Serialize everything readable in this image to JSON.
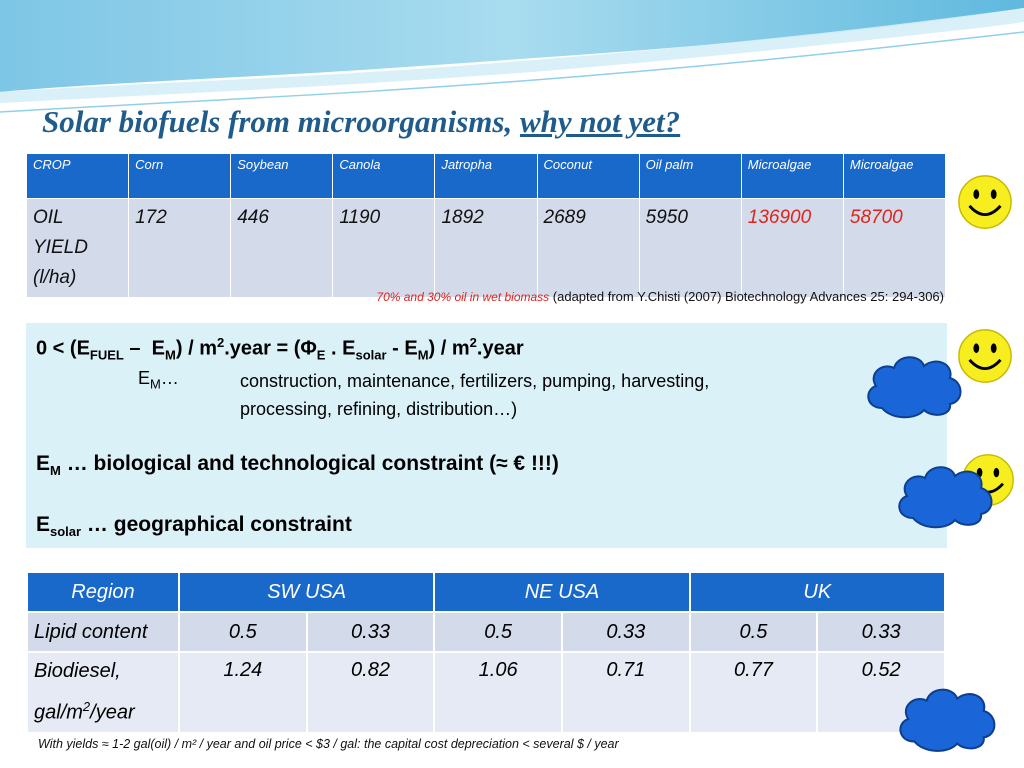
{
  "title": {
    "main": "Solar biofuels from microorganisms, ",
    "link": "why not yet?"
  },
  "table1": {
    "header": [
      "CROP",
      "Corn",
      "Soybean",
      "Canola",
      "Jatropha",
      "Coconut",
      "Oil palm",
      "Microalgae",
      "Microalgae"
    ],
    "row_label": [
      "OIL",
      "YIELD",
      "(l/ha)"
    ],
    "values": [
      "172",
      "446",
      "1190",
      "1892",
      "2689",
      "5950",
      "136900",
      "58700"
    ],
    "highlight_color": "#e0241b"
  },
  "source": {
    "note": "70% and 30% oil in wet biomass",
    "citation": " (adapted from Y.Chisti (2007) Biotechnology Advances 25: 294-306)"
  },
  "box": {
    "em_desc_line1": "construction, maintenance, fertilizers, pumping, harvesting,",
    "em_desc_line2": "processing, refining, distribution…)",
    "line2_text": " … biological and technological constraint (≈ € !!!)",
    "line3_text": " … geographical constraint"
  },
  "table2": {
    "header": [
      "Region",
      "SW USA",
      "NE USA",
      "UK"
    ],
    "lipid_label": "Lipid content",
    "lipid": [
      "0.5",
      "0.33",
      "0.5",
      "0.33",
      "0.5",
      "0.33"
    ],
    "biodiesel_label_1": "Biodiesel,",
    "biodiesel_label_2": "gal/m",
    "biodiesel_label_sup": "2",
    "biodiesel_label_3": "/year",
    "biodiesel": [
      "1.24",
      "0.82",
      "1.06",
      "0.71",
      "0.77",
      "0.52"
    ]
  },
  "footnote": "With yields ≈ 1-2 gal(oil) / m² / year and oil price < $3 / gal:  the capital cost depreciation < several $ / year",
  "colors": {
    "title": "#1f5c8c",
    "header": "#1869c9",
    "box": "#daf1f8",
    "cloud": "#1a66d8",
    "smiley": "#f6ee1e"
  }
}
